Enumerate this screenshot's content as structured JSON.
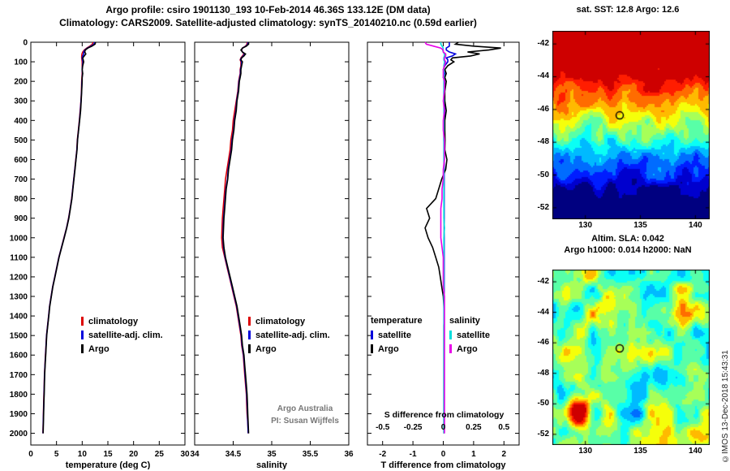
{
  "header": {
    "title_line1": "Argo profile: csiro 1901130_193 10-Feb-2014 46.36S 133.12E (DM data)",
    "title_line2": "Climatology: CARS2009. Satellite-adjusted climatology: synTS_20140210.nc (0.59d earlier)"
  },
  "maps": {
    "sst_title": "sat. SST: 12.8 Argo: 12.6",
    "sla_title1": "Altim. SLA: 0.042",
    "sla_title2": "Argo h1000: 0.014 h2000: NaN"
  },
  "annotations": {
    "argo_australia": "Argo Australia",
    "pi": "PI: Susan Wijffels",
    "watermark": "©IMOS 13-Dec-2018 15:43:31"
  },
  "colors": {
    "climatology": "#dd0000",
    "satellite_clim": "#0000dd",
    "argo": "#000000",
    "sat_cyan": "#00dddd",
    "argo_magenta": "#e800e8"
  },
  "chart_data": [
    {
      "type": "line",
      "id": "temperature-profile",
      "xlabel": "temperature (deg C)",
      "xlim": [
        0,
        30
      ],
      "xticks": [
        0,
        5,
        10,
        15,
        20,
        25,
        30
      ],
      "ylim": [
        0,
        2060
      ],
      "yticks": [
        0,
        100,
        200,
        300,
        400,
        500,
        600,
        700,
        800,
        900,
        1000,
        1100,
        1200,
        1300,
        1400,
        1500,
        1600,
        1700,
        1800,
        1900,
        2000
      ],
      "ytick_labels": true,
      "depths": [
        0,
        10,
        20,
        30,
        40,
        50,
        60,
        70,
        80,
        90,
        100,
        120,
        140,
        160,
        180,
        200,
        250,
        300,
        350,
        400,
        450,
        500,
        550,
        600,
        650,
        700,
        750,
        800,
        850,
        900,
        950,
        1000,
        1050,
        1100,
        1150,
        1200,
        1250,
        1300,
        1350,
        1400,
        1450,
        1500,
        1550,
        1600,
        1650,
        1700,
        1750,
        1800,
        1850,
        1900,
        1950,
        2000
      ],
      "series": [
        {
          "id": "t_clim",
          "name": "climatology",
          "color": "#dd0000",
          "values": [
            12.1,
            12.0,
            11.5,
            10.9,
            10.4,
            10.1,
            9.95,
            9.9,
            9.9,
            9.95,
            10.0,
            10.0,
            10.0,
            10.0,
            9.95,
            9.9,
            9.85,
            9.75,
            9.6,
            9.45,
            9.25,
            9.05,
            8.95,
            8.75,
            8.55,
            8.35,
            8.15,
            7.95,
            7.65,
            7.35,
            6.95,
            6.45,
            5.95,
            5.45,
            5.05,
            4.65,
            4.25,
            3.95,
            3.65,
            3.45,
            3.25,
            3.05,
            2.95,
            2.85,
            2.75,
            2.65,
            2.6,
            2.55,
            2.5,
            2.45,
            2.4,
            2.35
          ]
        },
        {
          "id": "t_sat",
          "name": "satellite-adj. clim.",
          "color": "#0000dd",
          "values": [
            12.4,
            12.3,
            11.7,
            11.0,
            10.5,
            10.3,
            10.3,
            10.1,
            10.0,
            10.05,
            10.15,
            10.05,
            10.0,
            10.05,
            10.0,
            9.95,
            9.88,
            9.78,
            9.65,
            9.48,
            9.28,
            9.08,
            8.97,
            8.78,
            8.57,
            8.37,
            8.17,
            7.97,
            7.67,
            7.37,
            6.97,
            6.47,
            5.97,
            5.47,
            5.07,
            4.67,
            4.27,
            3.97,
            3.67,
            3.47,
            3.27,
            3.07,
            2.97,
            2.87,
            2.77,
            2.67,
            2.62,
            2.57,
            2.52,
            2.47,
            2.42,
            2.37
          ]
        },
        {
          "id": "t_argo",
          "name": "Argo",
          "color": "#000000",
          "values": [
            12.6,
            12.5,
            11.9,
            11.1,
            10.6,
            10.5,
            10.7,
            10.4,
            10.1,
            10.2,
            10.3,
            10.1,
            10.0,
            10.1,
            10.0,
            10.0,
            9.9,
            9.8,
            9.7,
            9.5,
            9.3,
            9.1,
            9.0,
            8.8,
            8.6,
            8.4,
            8.2,
            8.0,
            7.7,
            7.4,
            7.0,
            6.5,
            6.0,
            5.5,
            5.1,
            4.7,
            4.3,
            4.0,
            3.7,
            3.5,
            3.3,
            3.1,
            3.0,
            2.9,
            2.8,
            2.7,
            2.65,
            2.6,
            2.55,
            2.5,
            2.45,
            2.4
          ]
        }
      ]
    },
    {
      "type": "line",
      "id": "salinity-profile",
      "xlabel": "salinity",
      "xlim": [
        34,
        36
      ],
      "xticks": [
        34,
        34.5,
        35,
        35.5,
        36
      ],
      "ylim": [
        0,
        2060
      ],
      "yticks": [
        0,
        100,
        200,
        300,
        400,
        500,
        600,
        700,
        800,
        900,
        1000,
        1100,
        1200,
        1300,
        1400,
        1500,
        1600,
        1700,
        1800,
        1900,
        2000
      ],
      "ytick_labels": false,
      "depths_ref": 0,
      "series": [
        {
          "id": "s_clim",
          "name": "climatology",
          "color": "#dd0000",
          "values": [
            34.68,
            34.68,
            34.66,
            34.62,
            34.61,
            34.62,
            34.64,
            34.62,
            34.6,
            34.59,
            34.6,
            34.6,
            34.59,
            34.59,
            34.58,
            34.57,
            34.56,
            34.54,
            34.52,
            34.5,
            34.49,
            34.47,
            34.46,
            34.44,
            34.42,
            34.4,
            34.39,
            34.38,
            34.37,
            34.36,
            34.355,
            34.35,
            34.36,
            34.39,
            34.42,
            34.45,
            34.48,
            34.51,
            34.54,
            34.56,
            34.58,
            34.6,
            34.61,
            34.63,
            34.64,
            34.65,
            34.66,
            34.67,
            34.675,
            34.68,
            34.69,
            34.695
          ]
        },
        {
          "id": "s_sat",
          "name": "satellite-adj. clim.",
          "color": "#0000dd",
          "values": [
            34.69,
            34.69,
            34.665,
            34.62,
            34.605,
            34.62,
            34.65,
            34.63,
            34.605,
            34.595,
            34.61,
            34.605,
            34.595,
            34.595,
            34.585,
            34.575,
            34.565,
            34.545,
            34.535,
            34.515,
            34.505,
            34.485,
            34.475,
            34.455,
            34.435,
            34.425,
            34.405,
            34.395,
            34.385,
            34.375,
            34.37,
            34.365,
            34.375,
            34.395,
            34.425,
            34.455,
            34.485,
            34.515,
            34.545,
            34.565,
            34.585,
            34.605,
            34.615,
            34.635,
            34.645,
            34.655,
            34.665,
            34.675,
            34.68,
            34.685,
            34.69,
            34.695
          ]
        },
        {
          "id": "s_argo",
          "name": "Argo",
          "color": "#000000",
          "values": [
            34.7,
            34.7,
            34.67,
            34.62,
            34.6,
            34.62,
            34.66,
            34.64,
            34.61,
            34.6,
            34.62,
            34.61,
            34.6,
            34.6,
            34.59,
            34.58,
            34.57,
            34.55,
            34.54,
            34.52,
            34.51,
            34.49,
            34.48,
            34.46,
            34.44,
            34.43,
            34.41,
            34.4,
            34.39,
            34.38,
            34.375,
            34.37,
            34.38,
            34.4,
            34.43,
            34.46,
            34.49,
            34.52,
            34.55,
            34.57,
            34.59,
            34.61,
            34.62,
            34.64,
            34.65,
            34.66,
            34.67,
            34.68,
            34.685,
            34.69,
            34.695,
            34.7
          ]
        }
      ]
    },
    {
      "type": "line",
      "id": "difference-from-climatology",
      "xlabel": "T difference from climatology",
      "xlim": [
        -2.5,
        2.5
      ],
      "xticks": [
        -2,
        -1,
        0,
        1,
        2
      ],
      "ylim": [
        0,
        2060
      ],
      "yticks": [
        0,
        100,
        200,
        300,
        400,
        500,
        600,
        700,
        800,
        900,
        1000,
        1100,
        1200,
        1300,
        1400,
        1500,
        1600,
        1700,
        1800,
        1900,
        2000
      ],
      "ytick_labels": false,
      "depths_ref": 0,
      "top_axis": {
        "label": "S difference from climatology",
        "ticks": [
          -0.5,
          -0.25,
          0,
          0.25,
          0.5
        ],
        "scale": 4
      },
      "legend_headers": {
        "t": "temperature",
        "s": "salinity"
      },
      "series": [
        {
          "id": "t_diff_sat",
          "name": "satellite",
          "color": "#0000dd",
          "values": [
            0.2,
            0.2,
            0.2,
            0.1,
            0.1,
            0.2,
            0.4,
            0.3,
            0.1,
            0.15,
            0.15,
            0.05,
            0.0,
            0.05,
            0.0,
            0.05,
            0.02,
            0.02,
            0.05,
            0.02,
            0.02,
            0.02,
            0.03,
            0.03,
            0.03,
            0.03,
            0.03,
            0.03,
            0.03,
            0.03,
            0.03,
            0.03,
            0.03,
            0.03,
            0.03,
            0.03,
            0.03,
            0.03,
            0.03,
            0.03,
            0.03,
            0.03,
            0.03,
            0.03,
            0.03,
            0.03,
            0.03,
            0.03,
            0.03,
            0.03,
            0.03,
            0.03
          ]
        },
        {
          "id": "t_diff_argo",
          "name": "Argo",
          "color": "#000000",
          "values": [
            0.5,
            0.4,
            1.0,
            1.9,
            1.5,
            0.8,
            1.2,
            0.9,
            0.3,
            0.25,
            0.35,
            0.15,
            0.05,
            0.1,
            0.05,
            0.1,
            0.05,
            0.05,
            0.1,
            0.05,
            0.05,
            0.06,
            0.05,
            0.12,
            0.08,
            -0.05,
            -0.15,
            -0.25,
            -0.55,
            -0.45,
            -0.6,
            -0.5,
            -0.35,
            -0.25,
            -0.15,
            -0.1,
            -0.05,
            0.0,
            0.02,
            0.03,
            0.02,
            0.02,
            0.02,
            0.02,
            0.02,
            0.02,
            0.02,
            0.02,
            0.02,
            0.02,
            0.02,
            0.02
          ]
        },
        {
          "id": "s_diff_sat",
          "name": "satellite",
          "color": "#00dddd",
          "xscale": 4,
          "values": [
            -0.02,
            -0.02,
            -0.01,
            0.0,
            -0.005,
            0.0,
            0.01,
            0.01,
            0.005,
            0.005,
            0.01,
            0.005,
            0.005,
            0.005,
            0.005,
            0.005,
            0.005,
            0.005,
            0.005,
            0.005,
            0.005,
            0.005,
            0.005,
            0.005,
            0.005,
            0.005,
            0.005,
            0.005,
            0.005,
            0.005,
            0.01,
            0.005,
            0.005,
            0.005,
            0.005,
            0.005,
            0.005,
            0.005,
            0.005,
            0.005,
            0.005,
            0.005,
            0.005,
            0.005,
            0.005,
            0.005,
            0.005,
            0.005,
            0.005,
            0.005,
            0.005,
            0.005
          ]
        },
        {
          "id": "s_diff_argo",
          "name": "Argo",
          "color": "#e800e8",
          "xscale": 4,
          "values": [
            -0.15,
            -0.14,
            -0.08,
            -0.02,
            0.0,
            0.0,
            0.02,
            0.02,
            0.01,
            0.01,
            0.02,
            0.01,
            0.0,
            0.0,
            0.0,
            0.01,
            0.01,
            0.0,
            0.01,
            0.0,
            0.0,
            0.01,
            0.01,
            0.01,
            0.0,
            0.0,
            -0.01,
            -0.01,
            -0.02,
            -0.02,
            -0.02,
            -0.02,
            -0.01,
            0.0,
            0.0,
            0.0,
            0.0,
            0.01,
            0.01,
            0.01,
            0.01,
            0.01,
            0.01,
            0.01,
            0.01,
            0.01,
            0.01,
            0.01,
            0.01,
            0.01,
            0.01,
            0.01
          ]
        }
      ]
    },
    {
      "type": "heatmap",
      "id": "sst-map",
      "title": "sat. SST: 12.8 Argo: 12.6",
      "field": "sst",
      "lon_range": [
        127,
        141.3
      ],
      "lat_range": [
        -41.2,
        -52.7
      ],
      "xticks": [
        130,
        135,
        140
      ],
      "yticks": [
        -42,
        -44,
        -46,
        -48,
        -50,
        -52
      ],
      "marker": {
        "lon": 133.12,
        "lat": -46.36
      },
      "colormap": "jet"
    },
    {
      "type": "heatmap",
      "id": "sla-map",
      "title": "Altim. SLA: 0.042 / Argo h1000: 0.014 h2000: NaN",
      "field": "sla",
      "lon_range": [
        127,
        141.3
      ],
      "lat_range": [
        -41.2,
        -52.7
      ],
      "xticks": [
        130,
        135,
        140
      ],
      "yticks": [
        -42,
        -44,
        -46,
        -48,
        -50,
        -52
      ],
      "marker": {
        "lon": 133.12,
        "lat": -46.36
      },
      "colormap": "jet"
    }
  ]
}
